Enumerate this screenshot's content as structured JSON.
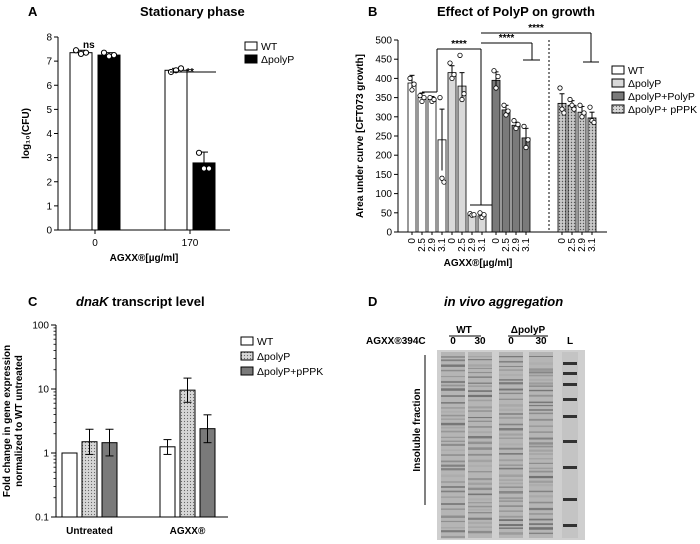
{
  "colors": {
    "black": "#000000",
    "white": "#ffffff",
    "light_gray": "#d9d9d9",
    "dark_gray": "#7a7a7a",
    "dotted_gray": "#c8c8c8"
  },
  "panels": {
    "a": {
      "letter": "A",
      "title": "Stationary phase"
    },
    "b": {
      "letter": "B",
      "title": "Effect of PolyP on growth"
    },
    "c": {
      "letter": "C",
      "title_italic": "dnaK",
      "title_rest": " transcript level"
    },
    "d": {
      "letter": "D",
      "title": "in vivo aggregation"
    }
  },
  "chart_data": [
    {
      "id": "A",
      "type": "bar",
      "title": "Stationary phase",
      "xlabel": "AGXX®[µg/ml]",
      "ylabel": "log₁₀(CFU)",
      "categories": [
        "0",
        "170"
      ],
      "ylim": [
        0,
        8
      ],
      "yticks": [
        "0",
        "1",
        "2",
        "3",
        "4",
        "5",
        "6",
        "7",
        "8"
      ],
      "series": [
        {
          "name": "WT",
          "fill": "white",
          "values": [
            7.35,
            6.62
          ],
          "err": [
            0.1,
            0.08
          ],
          "points": [
            [
              7.45,
              7.3,
              7.35
            ],
            [
              6.55,
              6.62,
              6.7
            ]
          ]
        },
        {
          "name": "ΔpolyP",
          "fill": "black",
          "values": [
            7.25,
            2.78
          ],
          "err": [
            0.1,
            0.45
          ],
          "points": [
            [
              7.35,
              7.2,
              7.25
            ],
            [
              3.2,
              2.55,
              2.55
            ]
          ]
        }
      ],
      "annotations": [
        "ns",
        "**"
      ],
      "legend": "top-right"
    },
    {
      "id": "B",
      "type": "bar",
      "title": "Effect of PolyP on growth",
      "xlabel": "AGXX®[µg/ml]",
      "ylabel": "Area under curve [CFT073 growth]",
      "ylim": [
        0,
        500
      ],
      "yticks": [
        "0",
        "50",
        "100",
        "150",
        "200",
        "250",
        "300",
        "350",
        "400",
        "450",
        "500"
      ],
      "group_categories": [
        "0",
        "2.5",
        "2.9",
        "3.1"
      ],
      "series": [
        {
          "name": "WT",
          "fill": "white",
          "values": [
            388,
            350,
            345,
            240
          ],
          "err": [
            20,
            12,
            8,
            80
          ],
          "points": [
            [
              400,
              370,
              385
            ],
            [
              355,
              340,
              350
            ],
            [
              350,
              340,
              345
            ],
            [
              350,
              140,
              130
            ]
          ]
        },
        {
          "name": "ΔpolyP",
          "fill": "light_gray",
          "values": [
            415,
            380,
            45,
            42
          ],
          "err": [
            18,
            35,
            4,
            5
          ],
          "points": [
            [
              440,
              400,
              410
            ],
            [
              460,
              345,
              360
            ],
            [
              48,
              44,
              45
            ],
            [
              50,
              38,
              45
            ]
          ]
        },
        {
          "name": "ΔpolyP+PolyP",
          "fill": "dark_gray",
          "values": [
            395,
            318,
            278,
            245
          ],
          "err": [
            22,
            12,
            8,
            25
          ],
          "points": [
            [
              420,
              375,
              405
            ],
            [
              330,
              305,
              315
            ],
            [
              290,
              270,
              280
            ],
            [
              275,
              220,
              240
            ]
          ]
        },
        {
          "name": "ΔpolyP+ pPPK",
          "fill": "dotted",
          "values": [
            335,
            330,
            312,
            297
          ],
          "err": [
            25,
            12,
            15,
            15
          ],
          "points": [
            [
              375,
              320,
              310
            ],
            [
              345,
              330,
              320
            ],
            [
              330,
              300,
              310
            ],
            [
              325,
              290,
              285
            ]
          ]
        }
      ],
      "annotations": [
        "****",
        "****",
        "****"
      ],
      "legend": "right"
    },
    {
      "id": "C",
      "type": "bar",
      "title": "dnaK transcript level",
      "xlabel": "",
      "ylabel": "Fold change in gene expression normalized to WT untreated",
      "yscale": "log",
      "ylim": [
        0.1,
        100
      ],
      "yticks": [
        "0.1",
        "1",
        "10",
        "100"
      ],
      "categories": [
        "Untreated",
        "AGXX®"
      ],
      "series": [
        {
          "name": "WT",
          "fill": "white",
          "values": [
            1.0,
            1.25
          ],
          "err_low": [
            1.0,
            0.95
          ],
          "err_high": [
            1.0,
            1.62
          ]
        },
        {
          "name": "ΔpolyP",
          "fill": "dotted",
          "values": [
            1.5,
            9.6
          ],
          "err_low": [
            0.95,
            6.2
          ],
          "err_high": [
            2.35,
            14.8
          ]
        },
        {
          "name": "ΔpolyP+pPPK",
          "fill": "dark_gray",
          "values": [
            1.45,
            2.4
          ],
          "err_low": [
            0.9,
            1.45
          ],
          "err_high": [
            2.35,
            3.95
          ]
        }
      ],
      "legend": "top-right"
    }
  ],
  "gel": {
    "row_label": "AGXX®394C",
    "group_labels": [
      "WT",
      "ΔpolyP"
    ],
    "lane_labels": [
      "0",
      "30",
      "0",
      "30",
      "L"
    ],
    "side_label": "Insoluble fraction"
  }
}
